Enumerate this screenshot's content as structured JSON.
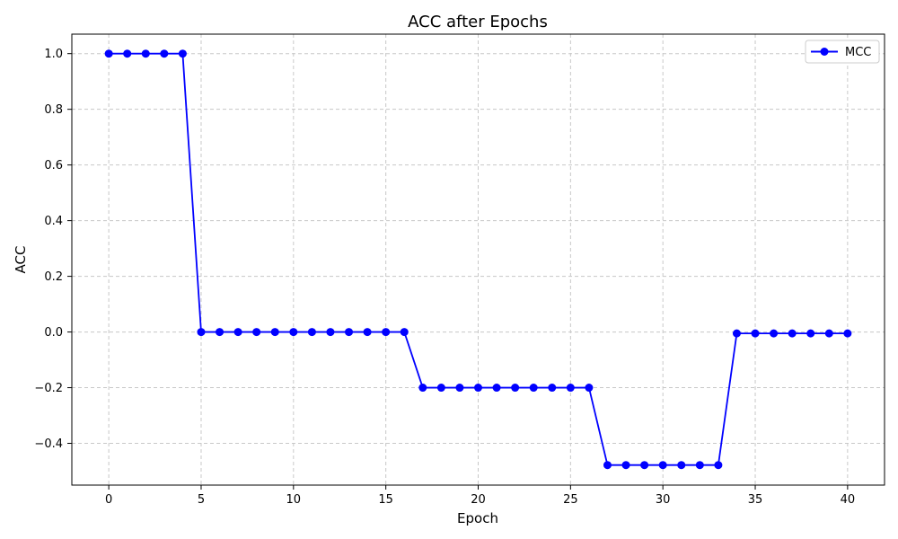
{
  "chart_data": {
    "type": "line",
    "title": "ACC after Epochs",
    "xlabel": "Epoch",
    "ylabel": "ACC",
    "xlim": [
      -2,
      42
    ],
    "ylim": [
      -0.55,
      1.07
    ],
    "xticks": [
      0,
      5,
      10,
      15,
      20,
      25,
      30,
      35,
      40
    ],
    "yticks": [
      -0.4,
      -0.2,
      0.0,
      0.2,
      0.4,
      0.6,
      0.8,
      1.0
    ],
    "xtick_labels": [
      "0",
      "5",
      "10",
      "15",
      "20",
      "25",
      "30",
      "35",
      "40"
    ],
    "ytick_labels": [
      "−0.4",
      "−0.2",
      "0.0",
      "0.2",
      "0.4",
      "0.6",
      "0.8",
      "1.0"
    ],
    "grid": true,
    "legend_position": "top-right",
    "series": [
      {
        "name": "MCC",
        "color": "#0000ff",
        "marker": "circle",
        "x": [
          0,
          1,
          2,
          3,
          4,
          5,
          6,
          7,
          8,
          9,
          10,
          11,
          12,
          13,
          14,
          15,
          16,
          17,
          18,
          19,
          20,
          21,
          22,
          23,
          24,
          25,
          26,
          27,
          28,
          29,
          30,
          31,
          32,
          33,
          34,
          35,
          36,
          37,
          38,
          39,
          40
        ],
        "y": [
          1.0,
          1.0,
          1.0,
          1.0,
          1.0,
          0.0,
          0.0,
          0.0,
          0.0,
          0.0,
          0.0,
          0.0,
          0.0,
          0.0,
          0.0,
          0.0,
          0.0,
          -0.2,
          -0.2,
          -0.2,
          -0.2,
          -0.2,
          -0.2,
          -0.2,
          -0.2,
          -0.2,
          -0.2,
          -0.478,
          -0.478,
          -0.478,
          -0.478,
          -0.478,
          -0.478,
          -0.478,
          -0.005,
          -0.005,
          -0.005,
          -0.005,
          -0.005,
          -0.005,
          -0.005
        ]
      }
    ]
  }
}
